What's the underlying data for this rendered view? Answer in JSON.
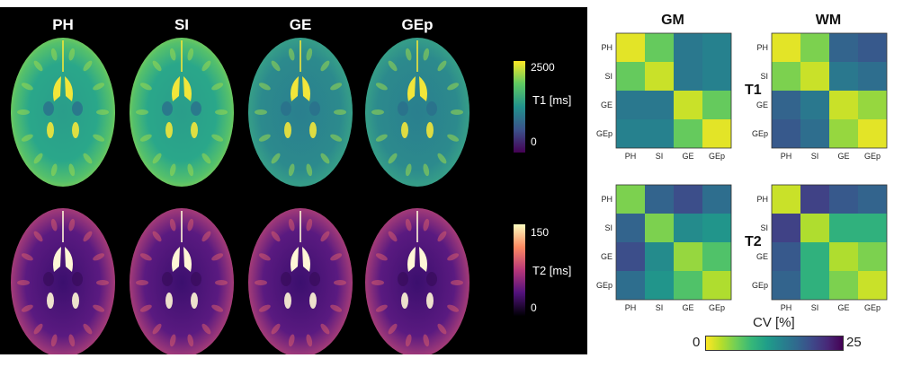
{
  "left_panel": {
    "columns": [
      "PH",
      "SI",
      "GE",
      "GEp"
    ],
    "t1_colorbar": {
      "max_label": "2500",
      "min_label": "0",
      "title": "T1 [ms]"
    },
    "t2_colorbar": {
      "max_label": "150",
      "min_label": "0",
      "title": "T2 [ms]"
    }
  },
  "right_panel": {
    "column_titles": [
      "GM",
      "WM"
    ],
    "row_titles": [
      "T1",
      "T2"
    ],
    "axis_labels": [
      "PH",
      "SI",
      "GE",
      "GEp"
    ],
    "colorbar": {
      "title": "CV [%]",
      "min_label": "0",
      "max_label": "25"
    },
    "chart_data": [
      {
        "type": "heatmap",
        "title": "GM",
        "row": "T1",
        "categories": [
          "PH",
          "SI",
          "GE",
          "GEp"
        ],
        "values": [
          [
            1,
            6,
            15,
            14
          ],
          [
            6,
            2,
            15,
            14
          ],
          [
            15,
            15,
            2,
            6
          ],
          [
            14,
            14,
            6,
            1
          ]
        ],
        "zlim": [
          0,
          25
        ]
      },
      {
        "type": "heatmap",
        "title": "WM",
        "row": "T1",
        "categories": [
          "PH",
          "SI",
          "GE",
          "GEp"
        ],
        "values": [
          [
            1,
            5,
            17,
            18
          ],
          [
            5,
            2,
            15,
            16
          ],
          [
            17,
            15,
            2,
            4
          ],
          [
            18,
            16,
            4,
            1
          ]
        ],
        "zlim": [
          0,
          25
        ]
      },
      {
        "type": "heatmap",
        "title": "GM",
        "row": "T2",
        "categories": [
          "PH",
          "SI",
          "GE",
          "GEp"
        ],
        "values": [
          [
            5,
            17,
            19,
            16
          ],
          [
            17,
            5,
            13,
            12
          ],
          [
            19,
            13,
            4,
            7
          ],
          [
            16,
            12,
            7,
            3
          ]
        ],
        "zlim": [
          0,
          25
        ]
      },
      {
        "type": "heatmap",
        "title": "WM",
        "row": "T2",
        "categories": [
          "PH",
          "SI",
          "GE",
          "GEp"
        ],
        "values": [
          [
            2,
            20,
            18,
            17
          ],
          [
            20,
            3,
            9,
            9
          ],
          [
            18,
            9,
            3,
            5
          ],
          [
            17,
            9,
            5,
            2
          ]
        ],
        "zlim": [
          0,
          25
        ]
      }
    ]
  }
}
